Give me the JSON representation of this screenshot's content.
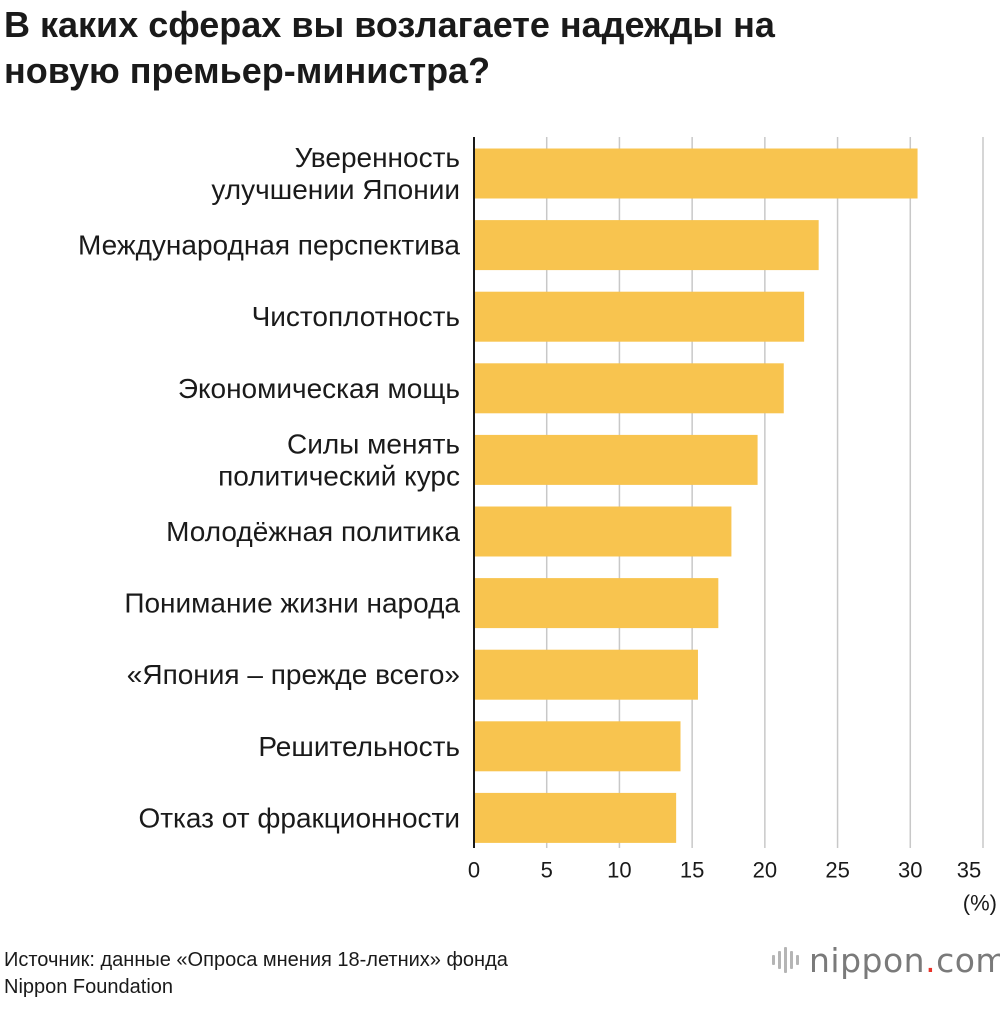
{
  "title_lines": [
    "В каких сферах вы возлагаете надежды на",
    "новую премьер-министра?"
  ],
  "chart_data": {
    "type": "bar",
    "orientation": "horizontal",
    "title": "В каких сферах вы возлагаете надежды на новую премьер-министра?",
    "categories": [
      [
        "Уверенность",
        "улучшении Японии"
      ],
      [
        "Международная перспектива"
      ],
      [
        "Чистоплотность"
      ],
      [
        "Экономическая мощь"
      ],
      [
        "Силы менять",
        "политический курс"
      ],
      [
        "Молодёжная политика"
      ],
      [
        "Понимание жизни народа"
      ],
      [
        "«Япония – прежде всего»"
      ],
      [
        "Решительность"
      ],
      [
        "Отказ от фракционности"
      ]
    ],
    "values": [
      30.5,
      23.7,
      22.7,
      21.3,
      19.5,
      17.7,
      16.8,
      15.4,
      14.2,
      13.9
    ],
    "xlim": [
      0,
      35
    ],
    "xticks": [
      0,
      5,
      10,
      15,
      20,
      25,
      30,
      35
    ],
    "xlabel": "(%)",
    "ylabel": "",
    "grid": true,
    "bar_color": "#f8c44f",
    "grid_color": "#c8c8c8",
    "axis_color": "#1a1a1a"
  },
  "source_lines": [
    "Источник: данные «Опроса мнения 18-летних» фонда",
    "Nippon Foundation"
  ],
  "logo": {
    "name": "nippon",
    "dot": ".",
    "tld": "com",
    "accent": "#e8332a",
    "icon": "nippon-wave-icon"
  }
}
